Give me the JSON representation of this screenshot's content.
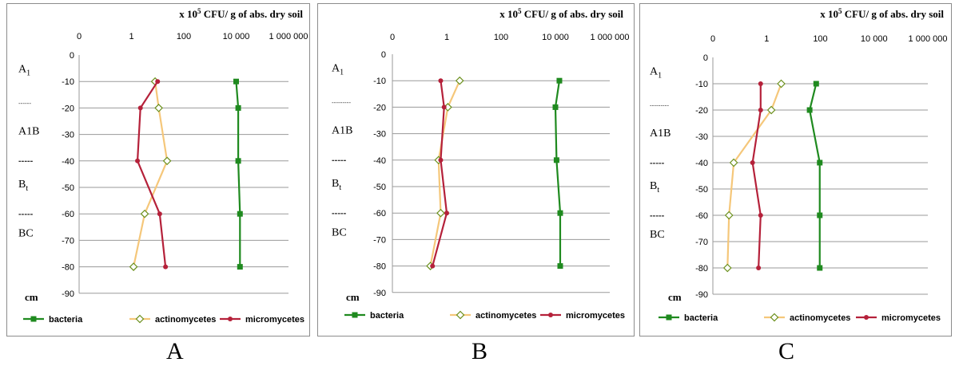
{
  "colors": {
    "bacteria": "#1f8a1f",
    "actinomycetes": "#f5c77a",
    "micromycetes": "#b5213a",
    "grid": "#9a9a9a"
  },
  "chart_data": [
    {
      "type": "line",
      "panel_label": "A",
      "unit_title": "x 10",
      "unit_exponent": "5",
      "unit_suffix": " CFU/ g of abs. dry soil",
      "x_scale": "log",
      "x_ticks": [
        {
          "value": 0.01,
          "label": "0"
        },
        {
          "value": 1,
          "label": "1"
        },
        {
          "value": 100,
          "label": "100"
        },
        {
          "value": 10000,
          "label": "10 000"
        },
        {
          "value": 1000000,
          "label": "1 000 000"
        }
      ],
      "y_ticks": [
        0,
        -10,
        -20,
        -30,
        -40,
        -50,
        -60,
        -70,
        -80,
        -90
      ],
      "ylim": [
        -90,
        0
      ],
      "ylabel": "cm",
      "grid": "horizontal",
      "legend_position": "bottom",
      "horizons": [
        {
          "label": "A",
          "sub": "1",
          "depth": -5,
          "style": "text"
        },
        {
          "label": "------",
          "sub": "",
          "depth": -19,
          "style": "divider-thin"
        },
        {
          "label": "A1B",
          "sub": "",
          "depth": -28.5,
          "style": "text"
        },
        {
          "label": "-----",
          "sub": "",
          "depth": -41,
          "style": "divider"
        },
        {
          "label": "B",
          "sub": "t",
          "depth": -48.5,
          "style": "text"
        },
        {
          "label": "-----",
          "sub": "",
          "depth": -61,
          "style": "divider"
        },
        {
          "label": "BC",
          "sub": "",
          "depth": -67,
          "style": "text"
        }
      ],
      "series": [
        {
          "name": "bacteria",
          "marker": "square",
          "points": [
            [
              10000,
              -10
            ],
            [
              12000,
              -20
            ],
            [
              12000,
              -40
            ],
            [
              14000,
              -60
            ],
            [
              14000,
              -80
            ]
          ]
        },
        {
          "name": "actinomycetes",
          "marker": "diamond",
          "points": [
            [
              8,
              -10
            ],
            [
              11,
              -20
            ],
            [
              23,
              -40
            ],
            [
              3.2,
              -60
            ],
            [
              1.2,
              -80
            ]
          ]
        },
        {
          "name": "micromycetes",
          "marker": "circle",
          "points": [
            [
              10,
              -10
            ],
            [
              2.2,
              -20
            ],
            [
              1.7,
              -40
            ],
            [
              12,
              -60
            ],
            [
              20,
              -80
            ]
          ]
        }
      ]
    },
    {
      "type": "line",
      "panel_label": "B",
      "unit_title": "x 10",
      "unit_exponent": "5",
      "unit_suffix": " CFU/ g of abs. dry soil",
      "x_scale": "log",
      "x_ticks": [
        {
          "value": 0.01,
          "label": "0"
        },
        {
          "value": 1,
          "label": "1"
        },
        {
          "value": 100,
          "label": "100"
        },
        {
          "value": 10000,
          "label": "10 000"
        },
        {
          "value": 1000000,
          "label": "1 000 000"
        }
      ],
      "y_ticks": [
        0,
        -10,
        -20,
        -30,
        -40,
        -50,
        -60,
        -70,
        -80,
        -90
      ],
      "ylim": [
        -90,
        0
      ],
      "ylabel": "cm",
      "grid": "horizontal",
      "legend_position": "bottom",
      "horizons": [
        {
          "label": "A",
          "sub": "1",
          "depth": -5,
          "style": "text"
        },
        {
          "label": "---------",
          "sub": "",
          "depth": -19,
          "style": "divider-thin"
        },
        {
          "label": "A1B",
          "sub": "",
          "depth": -28.5,
          "style": "text"
        },
        {
          "label": "-----",
          "sub": "",
          "depth": -41,
          "style": "divider"
        },
        {
          "label": "B",
          "sub": "t",
          "depth": -48.5,
          "style": "text"
        },
        {
          "label": "-----",
          "sub": "",
          "depth": -61,
          "style": "divider"
        },
        {
          "label": "BC",
          "sub": "",
          "depth": -67,
          "style": "text"
        }
      ],
      "series": [
        {
          "name": "bacteria",
          "marker": "square",
          "points": [
            [
              14000,
              -10
            ],
            [
              10000,
              -20
            ],
            [
              11000,
              -40
            ],
            [
              15000,
              -60
            ],
            [
              15000,
              -80
            ]
          ]
        },
        {
          "name": "actinomycetes",
          "marker": "diamond",
          "points": [
            [
              3,
              -10
            ],
            [
              1.1,
              -20
            ],
            [
              0.5,
              -40
            ],
            [
              0.6,
              -60
            ],
            [
              0.25,
              -80
            ]
          ]
        },
        {
          "name": "micromycetes",
          "marker": "circle",
          "points": [
            [
              0.6,
              -10
            ],
            [
              0.8,
              -20
            ],
            [
              0.6,
              -40
            ],
            [
              1,
              -60
            ],
            [
              0.3,
              -80
            ]
          ]
        }
      ]
    },
    {
      "type": "line",
      "panel_label": "C",
      "unit_title": "x 10",
      "unit_exponent": "5",
      "unit_suffix": " CFU/ g of abs. dry soil",
      "x_scale": "log",
      "x_ticks": [
        {
          "value": 0.01,
          "label": "0"
        },
        {
          "value": 1,
          "label": "1"
        },
        {
          "value": 100,
          "label": "100"
        },
        {
          "value": 10000,
          "label": "10 000"
        },
        {
          "value": 1000000,
          "label": "1 000 000"
        }
      ],
      "y_ticks": [
        0,
        -10,
        -20,
        -30,
        -40,
        -50,
        -60,
        -70,
        -80,
        -90
      ],
      "ylim": [
        -90,
        0
      ],
      "ylabel": "cm",
      "grid": "horizontal",
      "legend_position": "bottom",
      "horizons": [
        {
          "label": "A",
          "sub": "1",
          "depth": -5,
          "style": "text"
        },
        {
          "label": "---------",
          "sub": "",
          "depth": -19,
          "style": "divider-thin"
        },
        {
          "label": "A1B",
          "sub": "",
          "depth": -28.5,
          "style": "text"
        },
        {
          "label": "-----",
          "sub": "",
          "depth": -41,
          "style": "divider"
        },
        {
          "label": "B",
          "sub": "t",
          "depth": -48.5,
          "style": "text"
        },
        {
          "label": "-----",
          "sub": "",
          "depth": -61,
          "style": "divider"
        },
        {
          "label": "BC",
          "sub": "",
          "depth": -67,
          "style": "text"
        }
      ],
      "series": [
        {
          "name": "bacteria",
          "marker": "square",
          "points": [
            [
              70,
              -10
            ],
            [
              40,
              -20
            ],
            [
              95,
              -40
            ],
            [
              95,
              -60
            ],
            [
              95,
              -80
            ]
          ]
        },
        {
          "name": "actinomycetes",
          "marker": "diamond",
          "points": [
            [
              3.5,
              -10
            ],
            [
              1.5,
              -20
            ],
            [
              0.06,
              -40
            ],
            [
              0.04,
              -60
            ],
            [
              0.035,
              -80
            ]
          ]
        },
        {
          "name": "micromycetes",
          "marker": "circle",
          "points": [
            [
              0.6,
              -10
            ],
            [
              0.6,
              -20
            ],
            [
              0.3,
              -40
            ],
            [
              0.6,
              -60
            ],
            [
              0.5,
              -80
            ]
          ]
        }
      ]
    }
  ]
}
